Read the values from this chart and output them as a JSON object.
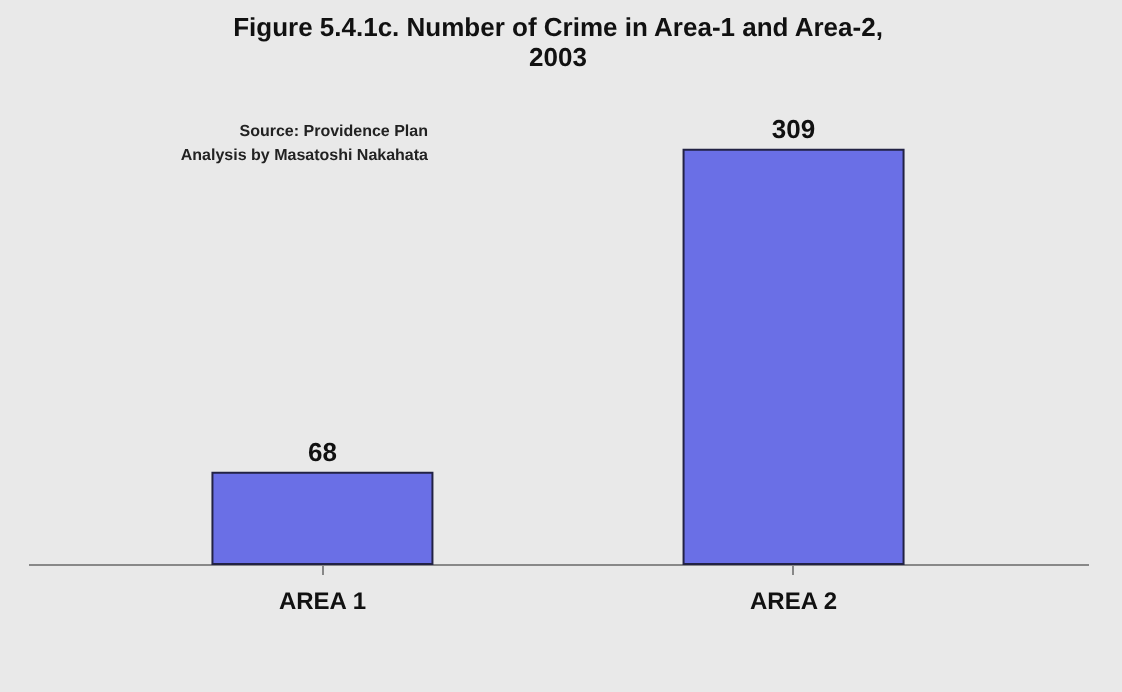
{
  "chart_data": {
    "type": "bar",
    "title": "Figure 5.4.1c. Number of Crime in Area-1 and Area-2, 2003",
    "categories": [
      "AREA 1",
      "AREA 2"
    ],
    "values": [
      68,
      309
    ],
    "color": "#6a6fe6",
    "data_labels": true,
    "grid": false,
    "annotations": [
      "Source: Providence Plan",
      "Analysis by Masatoshi Nakahata"
    ]
  }
}
